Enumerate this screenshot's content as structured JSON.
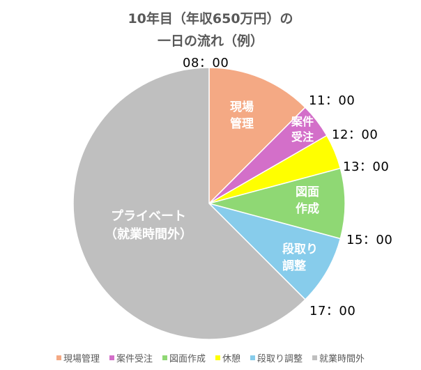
{
  "chart_data": {
    "type": "pie",
    "title": "10年目（年収650万円）の一日の流れ（例）",
    "title_lines": [
      "10年目（年収650万円）の",
      "一日の流れ（例）"
    ],
    "unit": "hours",
    "start_time": "08：00",
    "categories": [
      "現場管理",
      "案件受注",
      "休憩",
      "図面作成",
      "段取り調整",
      "就業時間外"
    ],
    "values": [
      3,
      1,
      1,
      2,
      2,
      15
    ],
    "colors": [
      "#F4A984",
      "#D36FC9",
      "#FFFF00",
      "#8FD874",
      "#87CCEB",
      "#BFBFBF"
    ],
    "slice_labels": [
      [
        "現場",
        "管理"
      ],
      [
        "案件",
        "受注"
      ],
      [],
      [
        "図面",
        "作成"
      ],
      [
        "段取り",
        "調整"
      ],
      [
        "プライベート",
        "（就業時間外）"
      ]
    ],
    "boundary_time_labels": [
      "08：00",
      "11：00",
      "12：00",
      "13：00",
      "15：00",
      "17：00"
    ],
    "legend": [
      "現場管理",
      "案件受注",
      "図面作成",
      "休憩",
      "段取り調整",
      "就業時間外"
    ],
    "legend_colors": [
      "#F4A984",
      "#D36FC9",
      "#8FD874",
      "#FFFF00",
      "#87CCEB",
      "#BFBFBF"
    ],
    "legend_position": "bottom"
  },
  "title": {
    "line1": "10年目（年収650万円）の",
    "line2": "一日の流れ（例）"
  },
  "times": {
    "t08": "08：00",
    "t11": "11：00",
    "t12": "12：00",
    "t13": "13：00",
    "t15": "15：00",
    "t17": "17：00"
  },
  "slices": {
    "genba": {
      "l1": "現場",
      "l2": "管理"
    },
    "anken": {
      "l1": "案件",
      "l2": "受注"
    },
    "zumen": {
      "l1": "図面",
      "l2": "作成"
    },
    "dandori": {
      "l1": "段取り",
      "l2": "調整"
    },
    "private": {
      "l1": "プライベート",
      "l2": "（就業時間外）"
    }
  },
  "legend": [
    {
      "label": "現場管理",
      "color": "#F4A984"
    },
    {
      "label": "案件受注",
      "color": "#D36FC9"
    },
    {
      "label": "図面作成",
      "color": "#8FD874"
    },
    {
      "label": "休憩",
      "color": "#FFFF00"
    },
    {
      "label": "段取り調整",
      "color": "#87CCEB"
    },
    {
      "label": "就業時間外",
      "color": "#BFBFBF"
    }
  ]
}
